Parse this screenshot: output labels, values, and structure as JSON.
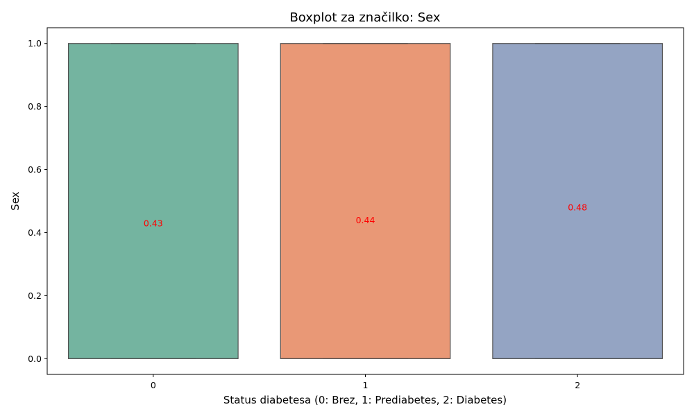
{
  "chart_data": {
    "type": "boxplot",
    "title": "Boxplot za značilko: Sex",
    "xlabel": "Status diabetesa (0: Brez, 1: Prediabetes, 2: Diabetes)",
    "ylabel": "Sex",
    "categories": [
      "0",
      "1",
      "2"
    ],
    "boxes": [
      {
        "category": "0",
        "whisker_low": 0.0,
        "q1": 0.0,
        "median": 0.0,
        "q3": 1.0,
        "whisker_high": 1.0,
        "color": "#74b4a0"
      },
      {
        "category": "1",
        "whisker_low": 0.0,
        "q1": 0.0,
        "median": 0.0,
        "q3": 1.0,
        "whisker_high": 1.0,
        "color": "#e99876"
      },
      {
        "category": "2",
        "whisker_low": 0.0,
        "q1": 0.0,
        "median": 0.0,
        "q3": 1.0,
        "whisker_high": 1.0,
        "color": "#94a4c3"
      }
    ],
    "annotations": [
      {
        "category": "0",
        "value": 0.43,
        "text": "0.43"
      },
      {
        "category": "1",
        "value": 0.44,
        "text": "0.44"
      },
      {
        "category": "2",
        "value": 0.48,
        "text": "0.48"
      }
    ],
    "annotation_color": "#ff0000",
    "box_edge_color": "#505050",
    "yticks": [
      "0.0",
      "0.2",
      "0.4",
      "0.6",
      "0.8",
      "1.0"
    ],
    "ylim": [
      -0.05,
      1.05
    ],
    "grid": false,
    "legend": "none"
  }
}
